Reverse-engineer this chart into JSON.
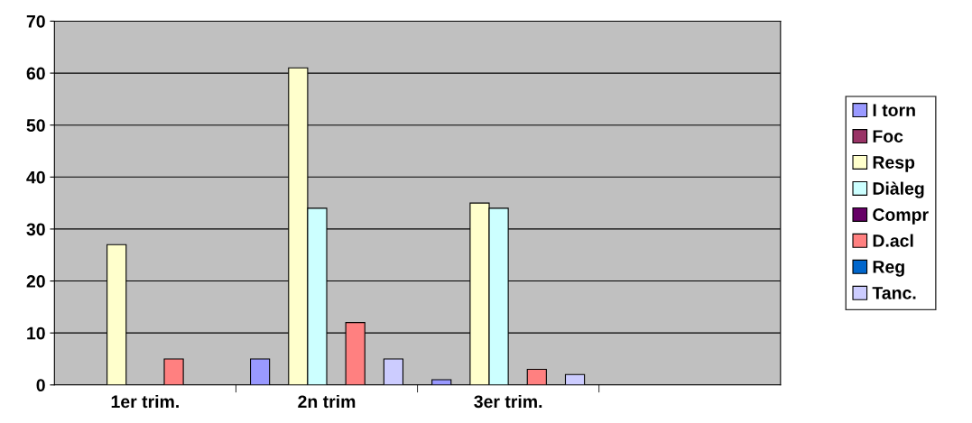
{
  "chart_data": {
    "type": "bar",
    "categories": [
      "1er trim.",
      "2n trim",
      "3er trim.",
      null
    ],
    "series": [
      {
        "name": "I torn",
        "color": "#9999ff",
        "values": [
          null,
          5,
          1,
          null
        ]
      },
      {
        "name": "Foc",
        "color": "#993366",
        "values": [
          null,
          null,
          null,
          null
        ]
      },
      {
        "name": "Resp",
        "color": "#ffffcc",
        "values": [
          27,
          61,
          35,
          null
        ]
      },
      {
        "name": "Diàleg",
        "color": "#ccffff",
        "values": [
          null,
          34,
          34,
          null
        ]
      },
      {
        "name": "Compr",
        "color": "#660066",
        "values": [
          null,
          null,
          null,
          null
        ]
      },
      {
        "name": "D.acl",
        "color": "#ff8080",
        "values": [
          5,
          12,
          3,
          null
        ]
      },
      {
        "name": "Reg",
        "color": "#0066cc",
        "values": [
          null,
          null,
          null,
          null
        ]
      },
      {
        "name": "Tanc.",
        "color": "#ccccff",
        "values": [
          null,
          5,
          2,
          null
        ]
      }
    ],
    "ylim": [
      0,
      70
    ],
    "yticks": [
      0,
      10,
      20,
      30,
      40,
      50,
      60,
      70
    ],
    "grid": "y",
    "legend": "right"
  }
}
